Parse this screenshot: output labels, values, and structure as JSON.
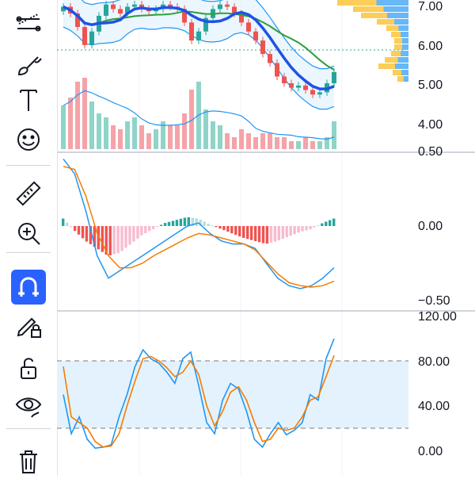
{
  "toolbar": {
    "tools": [
      {
        "name": "trend-line-tool-icon",
        "active": false
      },
      {
        "name": "brush-tool-icon",
        "active": false
      },
      {
        "name": "text-tool-icon",
        "active": false
      },
      {
        "name": "emoji-tool-icon",
        "active": false
      },
      {
        "name": "ruler-measure-icon",
        "active": false
      },
      {
        "name": "zoom-in-icon",
        "active": false
      },
      {
        "name": "magnet-icon",
        "active": true
      },
      {
        "name": "lock-drawings-icon",
        "active": false
      },
      {
        "name": "unlock-icon",
        "active": false
      },
      {
        "name": "hide-drawings-eye-icon",
        "active": false
      },
      {
        "name": "trash-icon",
        "active": false
      }
    ]
  },
  "price_axis": {
    "main_labels": [
      "7.00",
      "6.00",
      "5.00",
      "4.00"
    ],
    "macd_labels": [
      "0.50",
      "0.00",
      "−0.50"
    ],
    "stoch_labels": [
      "120.00",
      "80.00",
      "40.00",
      "0.00"
    ]
  },
  "colors": {
    "up": "#26a69a",
    "down": "#ef5350",
    "band": "#2196f3",
    "ma_fast": "#1e53e5",
    "ma_slow": "#2e9e3a",
    "macd": "#2196f3",
    "signal": "#f57c00",
    "stoch_fill": "#e3f2fd",
    "accent": "#2962ff"
  },
  "chart_data": [
    {
      "type": "candlestick",
      "panel": "price",
      "ylim": [
        3.5,
        7.2
      ],
      "close": [
        7.05,
        6.9,
        6.6,
        6.2,
        6.5,
        6.85,
        7.1,
        7.0,
        6.9,
        7.05,
        7.1,
        7.0,
        6.95,
        7.0,
        7.1,
        7.05,
        7.0,
        6.7,
        6.3,
        6.5,
        6.8,
        7.0,
        7.1,
        7.05,
        6.9,
        6.7,
        6.5,
        6.3,
        6.0,
        5.8,
        5.5,
        5.35,
        5.25,
        5.3,
        5.2,
        5.1,
        5.15,
        5.35,
        5.6
      ],
      "open": [
        6.95,
        7.05,
        6.9,
        6.6,
        6.2,
        6.5,
        6.85,
        7.1,
        7.0,
        6.9,
        7.05,
        7.1,
        7.0,
        6.95,
        7.0,
        7.1,
        7.05,
        7.0,
        6.7,
        6.3,
        6.5,
        6.8,
        7.0,
        7.1,
        7.05,
        6.9,
        6.7,
        6.5,
        6.3,
        6.0,
        5.8,
        5.5,
        5.35,
        5.25,
        5.3,
        5.2,
        5.1,
        5.15,
        5.35
      ],
      "volume": [
        0.55,
        0.65,
        0.85,
        0.9,
        0.6,
        0.45,
        0.4,
        0.3,
        0.25,
        0.35,
        0.4,
        0.3,
        0.2,
        0.25,
        0.35,
        0.3,
        0.3,
        0.45,
        0.75,
        0.85,
        0.5,
        0.35,
        0.3,
        0.2,
        0.15,
        0.25,
        0.2,
        0.15,
        0.2,
        0.2,
        0.15,
        0.15,
        0.1,
        0.1,
        0.15,
        0.1,
        0.1,
        0.15,
        0.35
      ]
    },
    {
      "type": "line",
      "panel": "macd",
      "ylim": [
        -0.55,
        0.5
      ],
      "macd": [
        0.45,
        0.35,
        0.1,
        -0.2,
        -0.35,
        -0.3,
        -0.25,
        -0.2,
        -0.15,
        -0.1,
        -0.05,
        0.0,
        0.02,
        -0.05,
        -0.1,
        -0.12,
        -0.12,
        -0.15,
        -0.25,
        -0.35,
        -0.4,
        -0.42,
        -0.4,
        -0.35,
        -0.28
      ],
      "signal": [
        0.4,
        0.38,
        0.2,
        -0.05,
        -0.2,
        -0.28,
        -0.28,
        -0.25,
        -0.2,
        -0.16,
        -0.12,
        -0.08,
        -0.05,
        -0.06,
        -0.08,
        -0.1,
        -0.12,
        -0.16,
        -0.24,
        -0.32,
        -0.38,
        -0.4,
        -0.41,
        -0.4,
        -0.37
      ],
      "hist": [
        0.05,
        -0.03,
        -0.1,
        -0.15,
        -0.2,
        -0.18,
        -0.12,
        -0.06,
        -0.02,
        0.02,
        0.04,
        0.06,
        0.05,
        0.01,
        -0.02,
        -0.05,
        -0.08,
        -0.1,
        -0.12,
        -0.1,
        -0.07,
        -0.04,
        -0.02,
        0.02,
        0.05
      ]
    },
    {
      "type": "line",
      "panel": "stochastic",
      "ylim": [
        -5,
        120
      ],
      "levels": [
        80,
        20
      ],
      "k": [
        50,
        15,
        30,
        10,
        2,
        3,
        5,
        30,
        50,
        75,
        90,
        82,
        78,
        70,
        60,
        82,
        88,
        58,
        25,
        15,
        45,
        60,
        55,
        35,
        10,
        3,
        15,
        25,
        14,
        18,
        25,
        50,
        45,
        82,
        100
      ],
      "d": [
        75,
        30,
        25,
        20,
        8,
        3,
        4,
        15,
        40,
        62,
        82,
        84,
        80,
        74,
        66,
        70,
        80,
        68,
        40,
        22,
        35,
        52,
        57,
        45,
        25,
        8,
        10,
        20,
        18,
        20,
        30,
        45,
        48,
        66,
        85
      ]
    }
  ]
}
